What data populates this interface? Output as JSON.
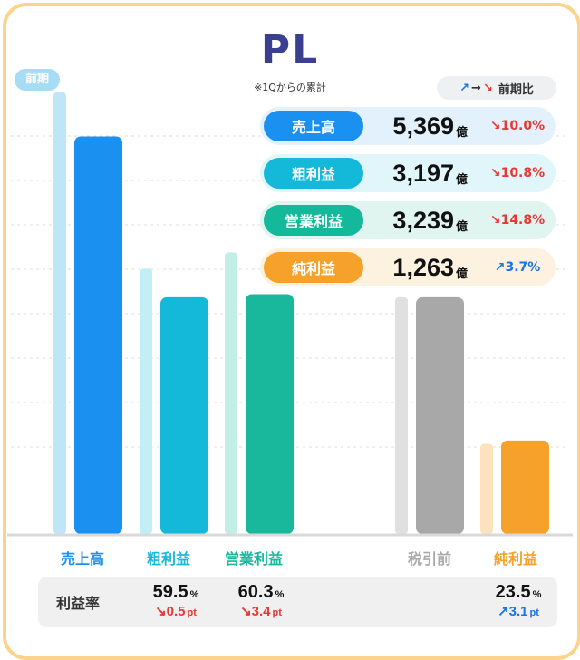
{
  "title": "PL",
  "note": "※1Qからの累計",
  "prev_label": "前期",
  "legend": {
    "up": "↗",
    "arrow": "→",
    "down": "↘",
    "label": "前期比"
  },
  "kpis": [
    {
      "label": "売上高",
      "value": "5,369",
      "unit": "億",
      "change": "↘10.0%",
      "dir": "down",
      "color": "#1a90f0",
      "bg": "#e3f1fd"
    },
    {
      "label": "粗利益",
      "value": "3,197",
      "unit": "億",
      "change": "↘10.8%",
      "dir": "down",
      "color": "#14b8d8",
      "bg": "#e0f6fa"
    },
    {
      "label": "営業利益",
      "value": "3,239",
      "unit": "億",
      "change": "↘14.8%",
      "dir": "down",
      "color": "#14b89a",
      "bg": "#e0f5f0"
    },
    {
      "label": "純利益",
      "value": "1,263",
      "unit": "億",
      "change": "↗3.7%",
      "dir": "up",
      "color": "#f5a12a",
      "bg": "#fdf1e0"
    }
  ],
  "margin_label": "利益率",
  "margins": [
    {
      "value": "59.5",
      "unit": "%",
      "change": "↘0.5",
      "cunit": "pt",
      "dir": "down"
    },
    {
      "value": "60.3",
      "unit": "%",
      "change": "↘3.4",
      "cunit": "pt",
      "dir": "down"
    },
    {
      "value": "23.5",
      "unit": "%",
      "change": "↗3.1",
      "cunit": "pt",
      "dir": "up"
    }
  ],
  "chart_data": {
    "type": "bar",
    "categories": [
      "売上高",
      "粗利益",
      "営業利益",
      "税引前",
      "純利益"
    ],
    "series": [
      {
        "name": "前期",
        "values": [
          5966,
          3584,
          3803,
          null,
          1218
        ]
      },
      {
        "values": [
          5369,
          3197,
          3239,
          3197,
          1263
        ]
      }
    ],
    "colors_current": [
      "#1a90f0",
      "#14b8d8",
      "#19b89c",
      "#a8a8a8",
      "#f5a12a"
    ],
    "colors_prev": [
      "#bfe6f8",
      "#c2eef6",
      "#c2eee6",
      "#e0e0e0",
      "#fde3bd"
    ],
    "ylim": [
      0,
      6000
    ],
    "grid": true
  }
}
